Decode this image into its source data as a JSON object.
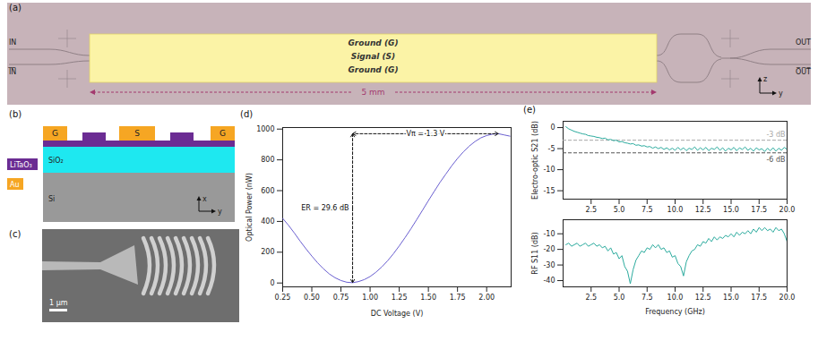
{
  "panels": {
    "a": {
      "label": "(a)",
      "electrodes": [
        "Ground (G)",
        "Signal (S)",
        "Ground (G)"
      ],
      "length": "5 mm",
      "inputs": [
        "IN",
        "I̅N̅"
      ],
      "outputs": [
        "OUT",
        "O̅U̅T̅"
      ],
      "axes": [
        "z",
        "y"
      ]
    },
    "b": {
      "label": "(b)",
      "electrodes": [
        "G",
        "S",
        "G"
      ],
      "legend": [
        {
          "name": "LiTaO₃",
          "color": "#6b2c93"
        },
        {
          "name": "Au",
          "color": "#f6a623"
        }
      ],
      "layers": [
        "SiO₂",
        "Si"
      ],
      "axes": [
        "x",
        "y"
      ]
    },
    "c": {
      "label": "(c)",
      "scale_bar": "1 μm"
    }
  },
  "chart_data": [
    {
      "type": "line",
      "title": "(d)",
      "xlabel": "DC Voltage (V)",
      "ylabel": "Optical Power (nW)",
      "x": [
        0.25,
        0.3,
        0.35,
        0.4,
        0.45,
        0.5,
        0.55,
        0.6,
        0.65,
        0.7,
        0.75,
        0.8,
        0.85,
        0.9,
        0.95,
        1.0,
        1.05,
        1.1,
        1.15,
        1.2,
        1.25,
        1.3,
        1.35,
        1.4,
        1.45,
        1.5,
        1.55,
        1.6,
        1.65,
        1.7,
        1.75,
        1.8,
        1.85,
        1.9,
        1.95,
        2.0,
        2.05,
        2.1,
        2.15,
        2.2
      ],
      "values": [
        420,
        375,
        325,
        272,
        222,
        175,
        131,
        92,
        59,
        34,
        16,
        5,
        2,
        9,
        22,
        42,
        70,
        104,
        144,
        190,
        241,
        295,
        352,
        412,
        473,
        535,
        595,
        654,
        708,
        761,
        809,
        852,
        889,
        919,
        943,
        958,
        967,
        970,
        962,
        954
      ],
      "color": "#6a5fd0",
      "xlim": [
        0.25,
        2.21
      ],
      "xticks": [
        0.25,
        {
          "value": 0.5,
          "label": "0.50"
        },
        0.75,
        {
          "value": 1,
          "label": "1.00"
        },
        1.25,
        {
          "value": 1.5,
          "label": "1.50"
        },
        1.75,
        {
          "value": 2,
          "label": "2.00"
        }
      ],
      "ylim": [
        -25,
        1010
      ],
      "yticks": [
        0,
        200,
        400,
        600,
        800,
        1000
      ],
      "annotations": [
        "Vπ = 1.3 V",
        "ER = 29.6 dB"
      ]
    },
    {
      "type": "line",
      "title": "(e)",
      "ylabel": "Electro-optic S21 (dB)",
      "x": [
        0.25,
        0.5,
        0.75,
        1.0,
        1.25,
        1.5,
        1.75,
        2.0,
        2.25,
        2.5,
        2.75,
        3.0,
        3.25,
        3.5,
        3.75,
        4.0,
        4.25,
        4.5,
        4.75,
        5.0,
        5.25,
        5.5,
        5.75,
        6.0,
        6.25,
        6.5,
        6.75,
        7.0,
        7.25,
        7.5,
        7.75,
        8.0,
        8.25,
        8.5,
        8.75,
        9.0,
        9.25,
        9.5,
        9.75,
        10.0,
        10.25,
        10.5,
        10.75,
        11.0,
        11.25,
        11.5,
        11.75,
        12.0,
        12.25,
        12.5,
        12.75,
        13.0,
        13.25,
        13.5,
        13.75,
        14.0,
        14.25,
        14.5,
        14.75,
        15.0,
        15.25,
        15.5,
        15.75,
        16.0,
        16.25,
        16.5,
        16.75,
        17.0,
        17.25,
        17.5,
        17.75,
        18.0,
        18.25,
        18.5,
        18.75,
        19.0,
        19.25,
        19.5,
        19.75,
        20.0
      ],
      "values": [
        0.2,
        -0.3,
        -0.6,
        -0.9,
        -1.1,
        -1.3,
        -1.5,
        -1.6,
        -1.9,
        -2.0,
        -2.1,
        -2.3,
        -2.4,
        -2.6,
        -2.5,
        -2.9,
        -2.8,
        -3.1,
        -3.0,
        -3.4,
        -3.3,
        -3.6,
        -3.7,
        -3.9,
        -3.8,
        -4.2,
        -4.1,
        -4.4,
        -4.3,
        -4.6,
        -4.5,
        -4.9,
        -4.6,
        -5.0,
        -4.7,
        -5.2,
        -4.8,
        -5.3,
        -4.9,
        -5.4,
        -4.7,
        -5.3,
        -4.8,
        -5.5,
        -4.9,
        -5.2,
        -4.6,
        -5.4,
        -4.8,
        -5.3,
        -4.7,
        -5.5,
        -4.9,
        -5.2,
        -4.6,
        -5.4,
        -4.8,
        -5.6,
        -4.9,
        -5.3,
        -4.7,
        -5.5,
        -4.8,
        -5.2,
        -4.6,
        -5.4,
        -4.9,
        -5.6,
        -4.8,
        -5.3,
        -5.0,
        -5.7,
        -4.9,
        -5.5,
        -4.8,
        -5.6,
        -4.9,
        -5.4,
        -4.7,
        -5.2
      ],
      "color": "#2bab9e",
      "xlim": [
        0,
        20
      ],
      "xticks": [
        2.5,
        {
          "value": 5,
          "label": "5.0"
        },
        7.5,
        {
          "value": 10,
          "label": "10.0"
        },
        12.5,
        {
          "value": 15,
          "label": "15.0"
        },
        17.5,
        {
          "value": 20,
          "label": "20.0"
        }
      ],
      "ylim": [
        -17,
        1.5
      ],
      "yticks": [
        -15,
        -10,
        -5,
        0
      ],
      "reference_lines": [
        {
          "value": -3,
          "label": "-3 dB",
          "color": "#a8a8a8"
        },
        {
          "value": -6,
          "label": "-6 dB",
          "color": "#555555"
        }
      ]
    },
    {
      "type": "line",
      "xlabel": "Frequency (GHz)",
      "ylabel": "RF S11 (dB)",
      "x": [
        0.25,
        0.5,
        0.75,
        1.0,
        1.25,
        1.5,
        1.75,
        2.0,
        2.25,
        2.5,
        2.75,
        3.0,
        3.25,
        3.5,
        3.75,
        4.0,
        4.25,
        4.5,
        4.75,
        5.0,
        5.25,
        5.5,
        5.75,
        6.0,
        6.25,
        6.5,
        6.75,
        7.0,
        7.25,
        7.5,
        7.75,
        8.0,
        8.25,
        8.5,
        8.75,
        9.0,
        9.25,
        9.5,
        9.75,
        10.0,
        10.25,
        10.5,
        10.75,
        11.0,
        11.25,
        11.5,
        11.75,
        12.0,
        12.25,
        12.5,
        12.75,
        13.0,
        13.25,
        13.5,
        13.75,
        14.0,
        14.25,
        14.5,
        14.75,
        15.0,
        15.25,
        15.5,
        15.75,
        16.0,
        16.25,
        16.5,
        16.75,
        17.0,
        17.25,
        17.5,
        17.75,
        18.0,
        18.25,
        18.5,
        18.75,
        19.0,
        19.25,
        19.5,
        19.75,
        20.0
      ],
      "values": [
        -17,
        -16,
        -18,
        -17,
        -16,
        -18,
        -17,
        -16,
        -18,
        -17,
        -16,
        -18,
        -17,
        -19,
        -18,
        -21,
        -19,
        -23,
        -22,
        -26,
        -24,
        -31,
        -34,
        -42,
        -33,
        -27,
        -24,
        -21,
        -22,
        -19,
        -20,
        -17,
        -19,
        -17,
        -20,
        -19,
        -22,
        -21,
        -25,
        -24,
        -29,
        -31,
        -37,
        -28,
        -24,
        -21,
        -20,
        -17,
        -18,
        -15,
        -16,
        -13,
        -15,
        -12,
        -14,
        -12,
        -13,
        -11,
        -12,
        -10,
        -12,
        -9,
        -11,
        -9,
        -10,
        -8,
        -10,
        -7,
        -9,
        -6,
        -8,
        -6,
        -8,
        -7,
        -9,
        -6,
        -8,
        -7,
        -10,
        -15
      ],
      "color": "#2bab9e",
      "xlim": [
        0,
        20
      ],
      "xticks": [
        2.5,
        {
          "value": 5,
          "label": "5.0"
        },
        7.5,
        {
          "value": 10,
          "label": "10.0"
        },
        12.5,
        {
          "value": 15,
          "label": "15.0"
        },
        17.5,
        {
          "value": 20,
          "label": "20.0"
        }
      ],
      "ylim": [
        -44,
        -1
      ],
      "yticks": [
        -40,
        -30,
        -20,
        -10
      ]
    }
  ]
}
